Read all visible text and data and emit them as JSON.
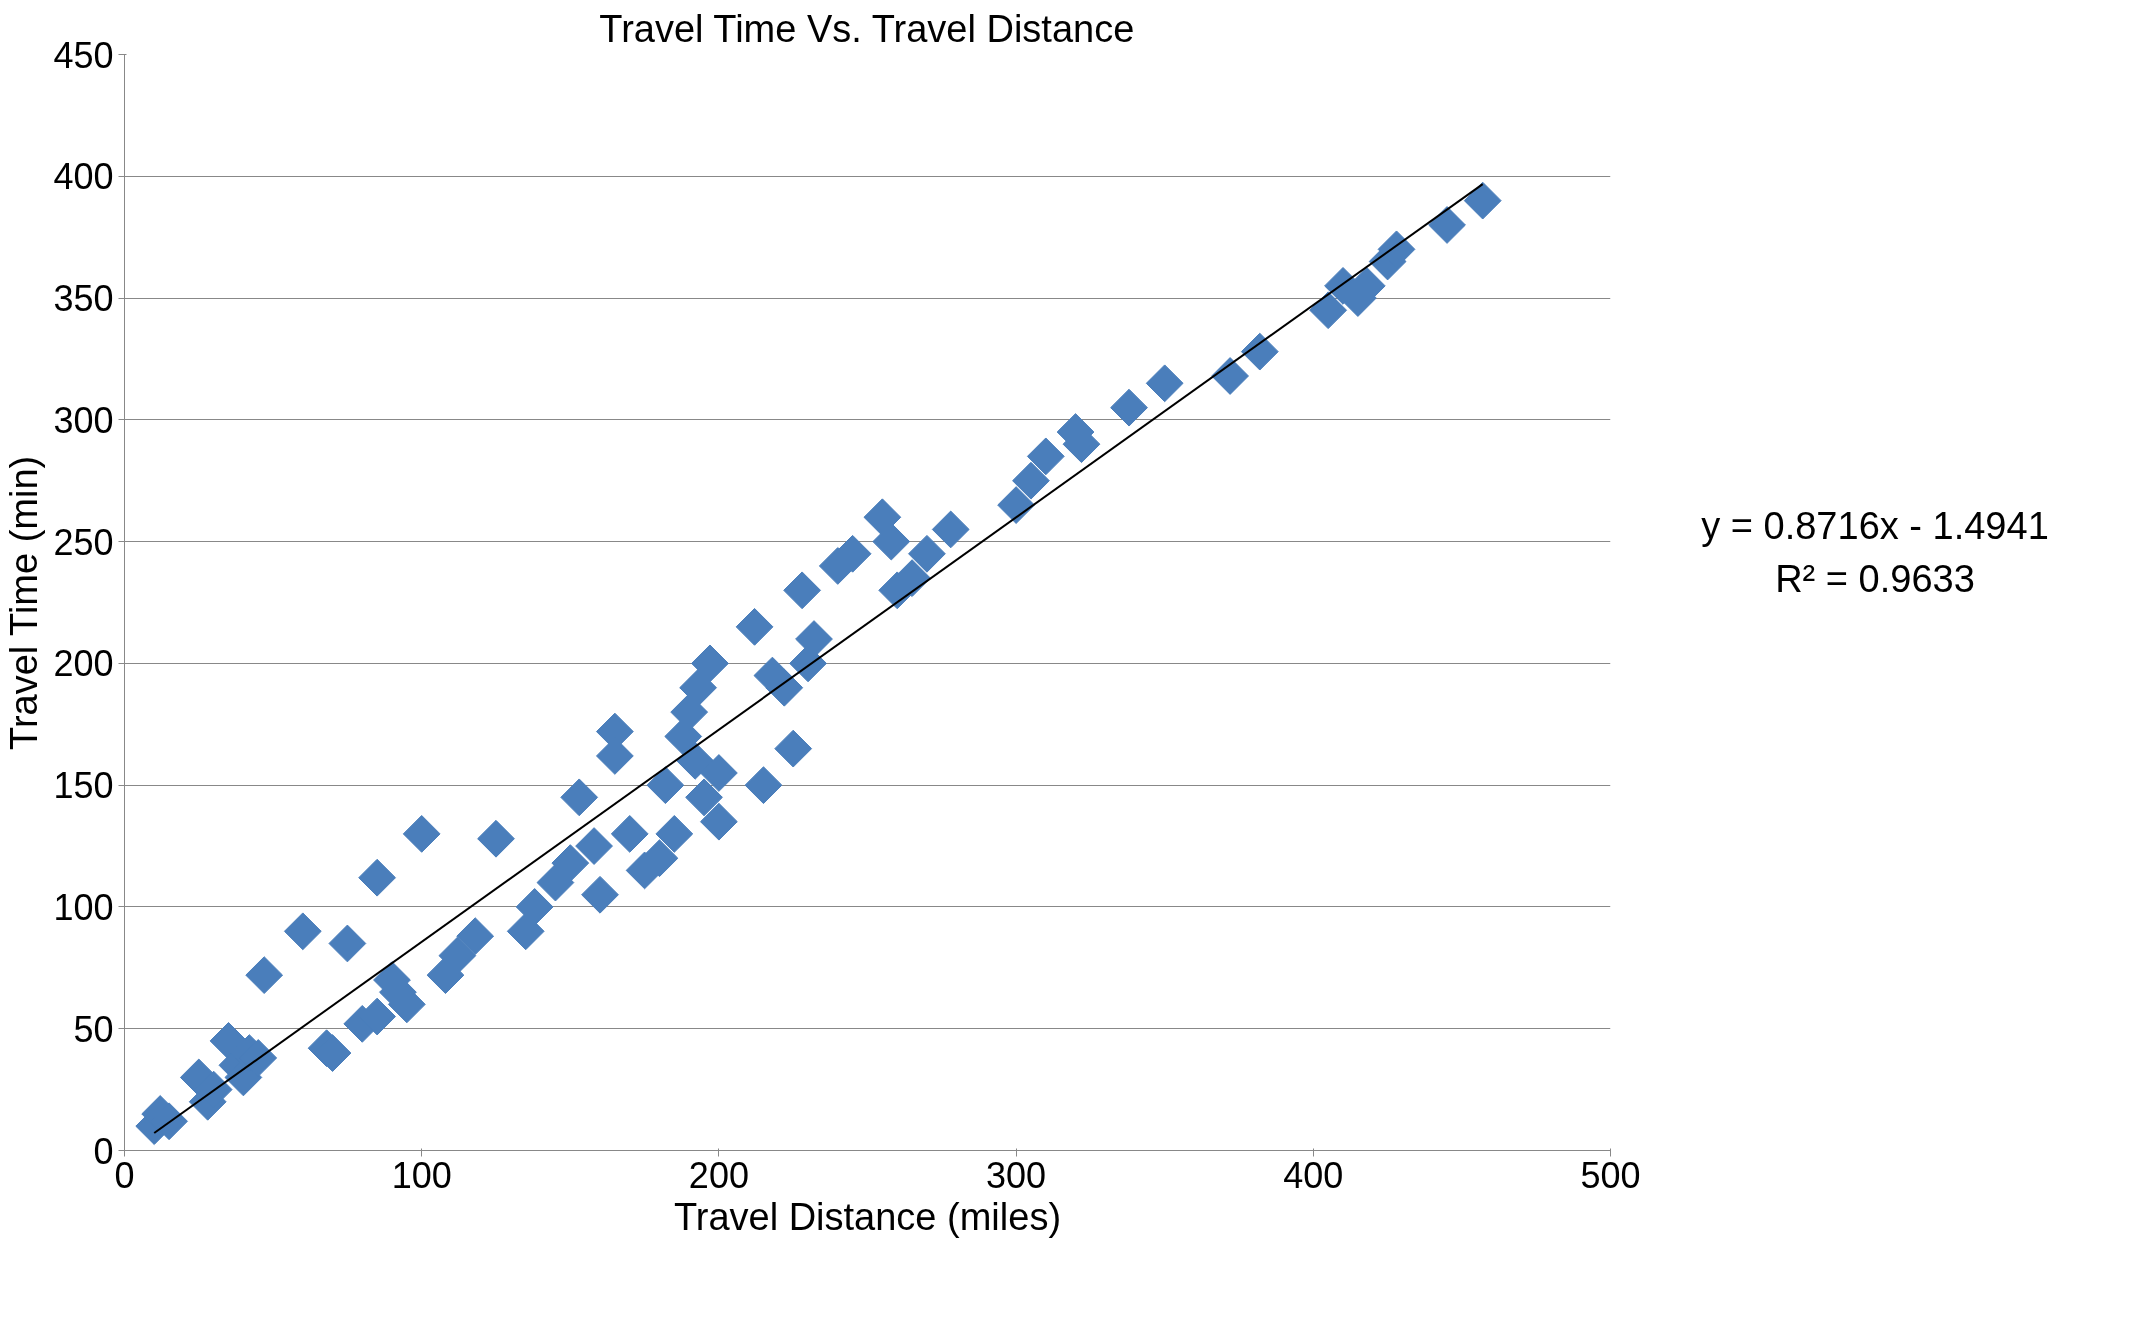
{
  "chart_data": {
    "type": "scatter",
    "title": "Travel Time Vs. Travel Distance",
    "xlabel": "Travel Distance (miles)",
    "ylabel": "Travel Time (min)",
    "xlim": [
      0,
      500
    ],
    "xticks": [
      0,
      100,
      200,
      300,
      400,
      500
    ],
    "ylim": [
      0,
      450
    ],
    "yticks": [
      0,
      50,
      100,
      150,
      200,
      250,
      300,
      350,
      400,
      450
    ],
    "grid": "y",
    "marker": "diamond",
    "annotations": [
      "y = 0.8716x - 1.4941",
      "R² = 0.9633"
    ],
    "series": [
      {
        "color": "#4a7ebb",
        "x": [
          10,
          12,
          15,
          25,
          28,
          30,
          35,
          38,
          40,
          42,
          45,
          47,
          60,
          68,
          70,
          75,
          80,
          85,
          85,
          90,
          92,
          95,
          100,
          108,
          112,
          118,
          125,
          135,
          138,
          145,
          150,
          153,
          158,
          160,
          165,
          165,
          170,
          175,
          180,
          182,
          185,
          188,
          190,
          192,
          193,
          195,
          197,
          200,
          200,
          212,
          215,
          218,
          222,
          225,
          228,
          230,
          232,
          240,
          245,
          255,
          258,
          260,
          265,
          270,
          278,
          300,
          305,
          310,
          320,
          322,
          338,
          350,
          372,
          382,
          405,
          410,
          415,
          418,
          425,
          428,
          445,
          457
        ],
        "values": [
          10,
          15,
          12,
          30,
          20,
          25,
          45,
          35,
          30,
          40,
          38,
          72,
          90,
          42,
          40,
          85,
          52,
          55,
          112,
          70,
          65,
          60,
          130,
          72,
          80,
          88,
          128,
          90,
          100,
          110,
          118,
          145,
          125,
          105,
          172,
          162,
          130,
          115,
          120,
          150,
          130,
          170,
          180,
          160,
          190,
          145,
          200,
          135,
          155,
          215,
          150,
          195,
          190,
          165,
          230,
          200,
          210,
          240,
          245,
          260,
          250,
          230,
          235,
          245,
          255,
          265,
          275,
          285,
          295,
          290,
          305,
          315,
          318,
          328,
          345,
          355,
          350,
          355,
          365,
          370,
          380,
          390
        ]
      },
      {
        "type": "line",
        "color": "#000000",
        "marker": "none",
        "x": [
          10,
          457
        ],
        "values": [
          7.2,
          396.8
        ]
      }
    ]
  }
}
